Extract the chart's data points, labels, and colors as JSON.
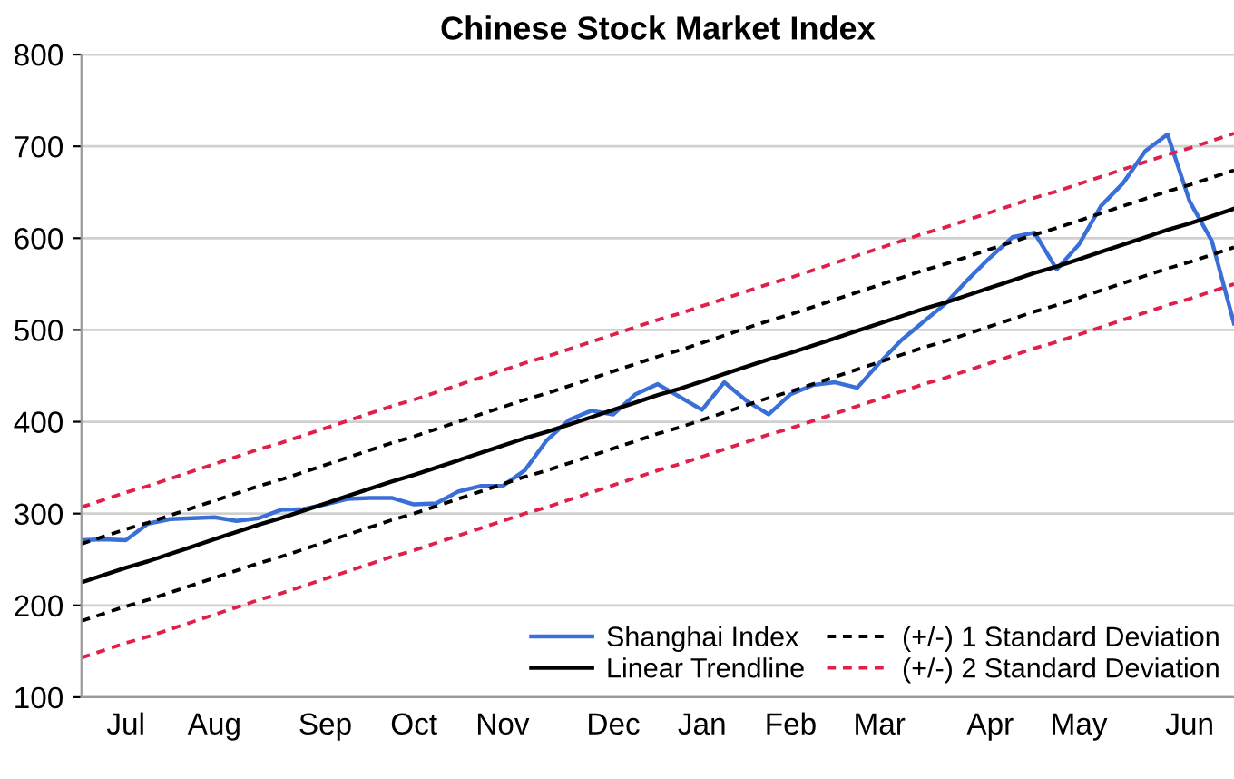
{
  "chart_data": {
    "type": "line",
    "title": "Chinese Stock Market Index",
    "categories": [
      null,
      null,
      "Jul",
      null,
      null,
      null,
      "Aug",
      null,
      null,
      null,
      null,
      "Sep",
      null,
      null,
      null,
      "Oct",
      null,
      null,
      null,
      "Nov",
      null,
      null,
      null,
      null,
      "Dec",
      null,
      null,
      null,
      "Jan",
      null,
      null,
      null,
      "Feb",
      null,
      null,
      null,
      "Mar",
      null,
      null,
      null,
      null,
      "Apr",
      null,
      null,
      null,
      "May",
      null,
      null,
      null,
      null,
      "Jun",
      null,
      null
    ],
    "ylim": [
      100,
      800
    ],
    "yticks": [
      100,
      200,
      300,
      400,
      500,
      600,
      700,
      800
    ],
    "grid": "y",
    "legend": "bottom right",
    "series": [
      {
        "name": "Shanghai Index",
        "color": "#3a6fd8",
        "line_style": "solid",
        "values": [
          271,
          272,
          271,
          289,
          294,
          295,
          296,
          292,
          295,
          304,
          305,
          310,
          316,
          317,
          317,
          310,
          311,
          324,
          330,
          330,
          347,
          380,
          402,
          412,
          408,
          430,
          441,
          427,
          413,
          443,
          423,
          408,
          430,
          440,
          443,
          437,
          464,
          489,
          509,
          529,
          555,
          579,
          601,
          606,
          566,
          593,
          635,
          660,
          695,
          713,
          640,
          597,
          507
        ]
      },
      {
        "name": "Linear Trendline",
        "color": "#000000",
        "line_style": "solid",
        "values": [
          225,
          233,
          241,
          248,
          256,
          264,
          272,
          280,
          288,
          295,
          303,
          311,
          319,
          327,
          335,
          342,
          350,
          358,
          366,
          374,
          382,
          389,
          397,
          405,
          413,
          421,
          429,
          436,
          444,
          452,
          460,
          468,
          475,
          483,
          491,
          499,
          507,
          515,
          523,
          530,
          538,
          546,
          554,
          562,
          569,
          577,
          585,
          593,
          601,
          609,
          616,
          624,
          632
        ]
      },
      {
        "name": "(+/-) 1 Standard Deviation",
        "color": "#000000",
        "line_style": "dotted",
        "values": [
          267,
          275,
          283,
          290,
          298,
          306,
          314,
          322,
          330,
          337,
          345,
          353,
          361,
          369,
          377,
          384,
          392,
          400,
          408,
          416,
          424,
          431,
          439,
          447,
          455,
          463,
          471,
          478,
          486,
          494,
          502,
          510,
          517,
          525,
          533,
          541,
          549,
          557,
          565,
          572,
          580,
          588,
          596,
          604,
          611,
          619,
          627,
          635,
          643,
          651,
          658,
          666,
          674
        ]
      },
      {
        "color": "#000000",
        "line_style": "dotted",
        "values": [
          183,
          191,
          199,
          206,
          214,
          222,
          230,
          238,
          246,
          253,
          261,
          269,
          277,
          285,
          293,
          300,
          308,
          316,
          324,
          332,
          340,
          347,
          355,
          363,
          371,
          379,
          387,
          394,
          402,
          410,
          418,
          426,
          433,
          441,
          449,
          457,
          465,
          473,
          481,
          488,
          496,
          504,
          512,
          520,
          527,
          535,
          543,
          551,
          559,
          567,
          574,
          582,
          590
        ]
      },
      {
        "name": "(+/-) 2 Standard Deviation",
        "color": "#e0204a",
        "line_style": "dotted",
        "values": [
          307,
          315,
          323,
          330,
          338,
          346,
          354,
          362,
          370,
          377,
          385,
          393,
          401,
          409,
          417,
          424,
          432,
          440,
          448,
          456,
          464,
          471,
          479,
          487,
          495,
          503,
          511,
          518,
          526,
          534,
          542,
          550,
          557,
          565,
          573,
          581,
          589,
          597,
          605,
          612,
          620,
          628,
          636,
          644,
          651,
          659,
          667,
          675,
          683,
          691,
          698,
          706,
          714
        ]
      },
      {
        "color": "#e0204a",
        "line_style": "dotted",
        "values": [
          143,
          151,
          159,
          166,
          174,
          182,
          190,
          198,
          206,
          213,
          221,
          229,
          237,
          245,
          253,
          260,
          268,
          276,
          284,
          292,
          300,
          307,
          315,
          323,
          331,
          339,
          347,
          354,
          362,
          370,
          378,
          386,
          393,
          401,
          409,
          417,
          425,
          433,
          441,
          448,
          456,
          464,
          472,
          480,
          487,
          495,
          503,
          511,
          519,
          527,
          534,
          542,
          550
        ]
      }
    ]
  }
}
